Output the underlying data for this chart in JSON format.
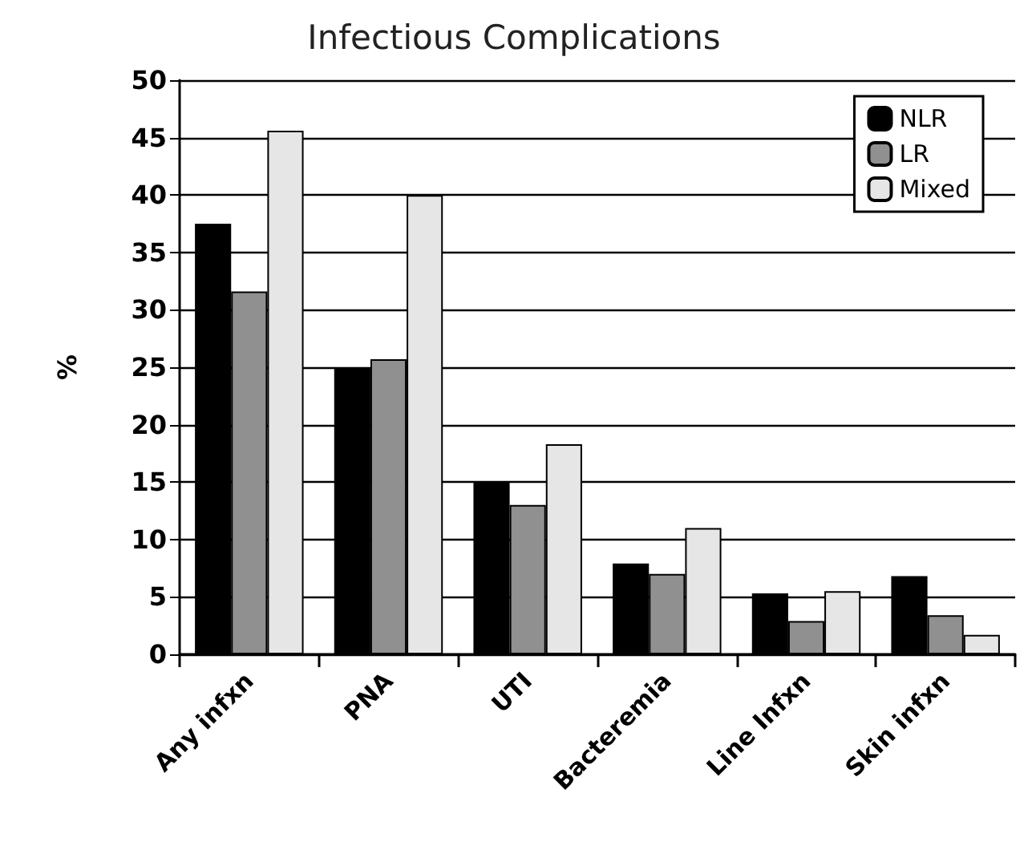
{
  "chart_data": {
    "type": "bar",
    "title": "Infectious Complications",
    "ylabel": "%",
    "categories": [
      "Any infxn",
      "PNA",
      "UTI",
      "Bacteremia",
      "Line Infxn",
      "Skin infxn"
    ],
    "series": [
      {
        "name": "NLR",
        "color": "#000000",
        "values": [
          37.5,
          25,
          15,
          7.9,
          5.3,
          6.8
        ]
      },
      {
        "name": "LR",
        "color": "#909090",
        "values": [
          31.6,
          25.7,
          13,
          7,
          2.9,
          3.4
        ]
      },
      {
        "name": "Mixed",
        "color": "#e6e6e6",
        "values": [
          45.6,
          40,
          18.3,
          11,
          5.5,
          1.7
        ]
      }
    ],
    "ylim": [
      0,
      50
    ],
    "yticks": [
      0,
      5,
      10,
      15,
      20,
      25,
      30,
      35,
      40,
      45,
      50
    ],
    "grid": "y",
    "legend": "top right"
  }
}
